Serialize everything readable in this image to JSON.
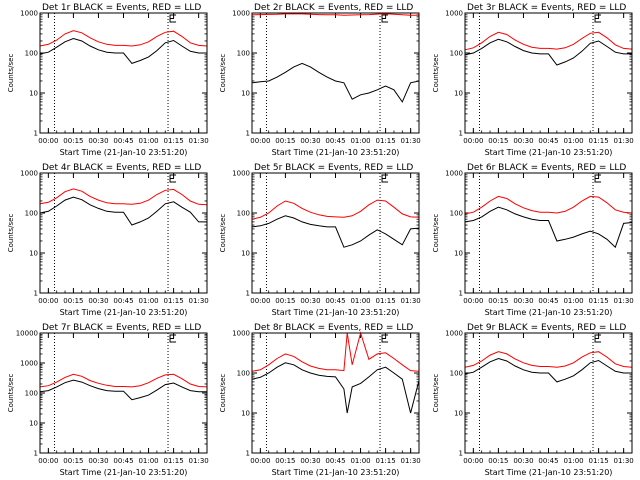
{
  "chart_data": {
    "type": "line",
    "x_ticks": [
      "00:00",
      "00:15",
      "00:30",
      "00:45",
      "01:00",
      "01:15",
      "01:30"
    ],
    "xlabel": "Start Time (21-Jan-10 23:51:20)",
    "ylabel": "Counts/sec",
    "yscale": "log",
    "dotted_lines_minutes": [
      8.67,
      76.67
    ],
    "panels": [
      {
        "title": "Det 1r BLACK = Events, RED = LLD",
        "ylim": [
          1,
          1000
        ],
        "yticks": [
          "1",
          "10",
          "100",
          "1000"
        ],
        "x_minutes": [
          0,
          5,
          10,
          15,
          20,
          25,
          30,
          35,
          40,
          45,
          50,
          55,
          60,
          65,
          70,
          75,
          80,
          85,
          90,
          95,
          100
        ],
        "series": [
          {
            "name": "Events",
            "color": "#000000",
            "values": [
              95,
              105,
              140,
              190,
              230,
              200,
              150,
              120,
              105,
              100,
              100,
              55,
              65,
              80,
              115,
              180,
              205,
              150,
              110,
              100,
              100
            ]
          },
          {
            "name": "LLD",
            "color": "#ff0000",
            "values": [
              150,
              165,
              210,
              300,
              360,
              320,
              240,
              190,
              165,
              155,
              155,
              150,
              160,
              190,
              260,
              330,
              350,
              260,
              180,
              155,
              150
            ]
          }
        ]
      },
      {
        "title": "Det 2r BLACK = Events, RED = LLD",
        "ylim": [
          1,
          1000
        ],
        "yticks": [
          "1",
          "10",
          "100",
          "1000"
        ],
        "x_minutes": [
          0,
          5,
          10,
          15,
          20,
          25,
          30,
          35,
          40,
          45,
          50,
          55,
          60,
          65,
          70,
          75,
          80,
          85,
          90,
          95,
          100
        ],
        "series": [
          {
            "name": "Events",
            "color": "#000000",
            "values": [
              18,
              19,
              20,
              25,
              33,
              45,
              55,
              45,
              33,
              25,
              20,
              18,
              7,
              9,
              10,
              12,
              15,
              12,
              6,
              18,
              20
            ]
          },
          {
            "name": "LLD",
            "color": "#ff0000",
            "values": [
              900,
              910,
              920,
              930,
              950,
              960,
              950,
              930,
              910,
              900,
              900,
              880,
              890,
              900,
              910,
              940,
              960,
              930,
              900,
              880,
              880
            ]
          }
        ]
      },
      {
        "title": "Det 3r BLACK = Events, RED = LLD",
        "ylim": [
          1,
          1000
        ],
        "yticks": [
          "1",
          "10",
          "100",
          "1000"
        ],
        "x_minutes": [
          0,
          5,
          10,
          15,
          20,
          25,
          30,
          35,
          40,
          45,
          50,
          55,
          60,
          65,
          70,
          75,
          80,
          85,
          90,
          95,
          100
        ],
        "series": [
          {
            "name": "Events",
            "color": "#000000",
            "values": [
              90,
              100,
              130,
              180,
              220,
              190,
              145,
              115,
              100,
              95,
              95,
              50,
              60,
              75,
              110,
              175,
              200,
              145,
              105,
              95,
              95
            ]
          },
          {
            "name": "LLD",
            "color": "#ff0000",
            "values": [
              120,
              135,
              180,
              260,
              330,
              290,
              210,
              165,
              140,
              130,
              130,
              125,
              135,
              165,
              230,
              310,
              330,
              240,
              160,
              130,
              125
            ]
          }
        ]
      },
      {
        "title": "Det 4r BLACK = Events, RED = LLD",
        "ylim": [
          1,
          1000
        ],
        "yticks": [
          "1",
          "10",
          "100",
          "1000"
        ],
        "x_minutes": [
          0,
          5,
          10,
          15,
          20,
          25,
          30,
          35,
          40,
          45,
          50,
          55,
          60,
          65,
          70,
          75,
          80,
          85,
          90,
          95,
          100
        ],
        "series": [
          {
            "name": "Events",
            "color": "#000000",
            "values": [
              100,
              110,
              150,
              210,
              250,
              215,
              160,
              130,
              110,
              105,
              105,
              50,
              60,
              75,
              110,
              170,
              190,
              140,
              105,
              60,
              60
            ]
          },
          {
            "name": "LLD",
            "color": "#ff0000",
            "values": [
              170,
              185,
              240,
              340,
              400,
              350,
              260,
              210,
              180,
              170,
              170,
              165,
              175,
              210,
              290,
              370,
              390,
              290,
              200,
              165,
              160
            ]
          }
        ]
      },
      {
        "title": "Det 5r BLACK = Events, RED = LLD",
        "ylim": [
          1,
          1000
        ],
        "yticks": [
          "1",
          "10",
          "100",
          "1000"
        ],
        "x_minutes": [
          0,
          5,
          10,
          15,
          20,
          25,
          30,
          35,
          40,
          45,
          50,
          55,
          60,
          65,
          70,
          75,
          80,
          85,
          90,
          95,
          100
        ],
        "series": [
          {
            "name": "Events",
            "color": "#000000",
            "values": [
              45,
              48,
              55,
              70,
              85,
              75,
              60,
              52,
              48,
              45,
              45,
              14,
              16,
              20,
              28,
              38,
              30,
              22,
              16,
              40,
              42
            ]
          },
          {
            "name": "LLD",
            "color": "#ff0000",
            "values": [
              70,
              78,
              100,
              150,
              200,
              175,
              130,
              105,
              90,
              82,
              80,
              78,
              85,
              110,
              160,
              210,
              200,
              140,
              95,
              80,
              78
            ]
          }
        ]
      },
      {
        "title": "Det 6r BLACK = Events, RED = LLD",
        "ylim": [
          1,
          1000
        ],
        "yticks": [
          "1",
          "10",
          "100",
          "1000"
        ],
        "x_minutes": [
          0,
          5,
          10,
          15,
          20,
          25,
          30,
          35,
          40,
          45,
          50,
          55,
          60,
          65,
          70,
          75,
          80,
          85,
          90,
          95,
          100
        ],
        "series": [
          {
            "name": "Events",
            "color": "#000000",
            "values": [
              60,
              65,
              80,
              110,
              140,
              120,
              95,
              80,
              70,
              65,
              65,
              20,
              22,
              25,
              30,
              35,
              30,
              22,
              14,
              55,
              58
            ]
          },
          {
            "name": "LLD",
            "color": "#ff0000",
            "values": [
              95,
              105,
              140,
              200,
              260,
              230,
              170,
              135,
              115,
              105,
              105,
              100,
              110,
              140,
              200,
              260,
              250,
              180,
              120,
              105,
              100
            ]
          }
        ]
      },
      {
        "title": "Det 7r BLACK = Events, RED = LLD",
        "ylim": [
          1,
          10000
        ],
        "yticks": [
          "1",
          "10",
          "100",
          "1000",
          "10000"
        ],
        "x_minutes": [
          0,
          5,
          10,
          15,
          20,
          25,
          30,
          35,
          40,
          45,
          50,
          55,
          60,
          65,
          70,
          75,
          80,
          85,
          90,
          95,
          100
        ],
        "series": [
          {
            "name": "Events",
            "color": "#000000",
            "values": [
              110,
              120,
              160,
              220,
              270,
              230,
              175,
              140,
              120,
              115,
              115,
              60,
              70,
              85,
              125,
              190,
              215,
              160,
              120,
              110,
              110
            ]
          },
          {
            "name": "LLD",
            "color": "#ff0000",
            "values": [
              160,
              175,
              230,
              330,
              420,
              360,
              260,
              210,
              180,
              165,
              165,
              160,
              175,
              220,
              310,
              400,
              420,
              300,
              200,
              165,
              160
            ]
          }
        ]
      },
      {
        "title": "Det 8r BLACK = Events, RED = LLD",
        "ylim": [
          1,
          1000
        ],
        "yticks": [
          "1",
          "10",
          "100",
          "1000"
        ],
        "x_minutes": [
          0,
          5,
          10,
          15,
          20,
          25,
          30,
          35,
          40,
          45,
          50,
          55,
          57,
          60,
          65,
          70,
          75,
          80,
          85,
          90,
          95,
          100
        ],
        "series": [
          {
            "name": "Events",
            "color": "#000000",
            "values": [
              70,
              78,
              100,
              140,
              180,
              160,
              120,
              100,
              88,
              82,
              80,
              40,
              10,
              45,
              55,
              80,
              120,
              140,
              100,
              70,
              10,
              65
            ]
          },
          {
            "name": "LLD",
            "color": "#ff0000",
            "values": [
              110,
              120,
              160,
              230,
              300,
              260,
              190,
              150,
              130,
              120,
              120,
              115,
              1000,
              160,
              1000,
              220,
              300,
              320,
              230,
              160,
              115,
              110
            ]
          }
        ]
      },
      {
        "title": "Det 9r BLACK = Events, RED = LLD",
        "ylim": [
          1,
          1000
        ],
        "yticks": [
          "1",
          "10",
          "100",
          "1000"
        ],
        "x_minutes": [
          0,
          5,
          10,
          15,
          20,
          25,
          30,
          35,
          40,
          45,
          50,
          55,
          60,
          65,
          70,
          75,
          80,
          85,
          90,
          95,
          100
        ],
        "series": [
          {
            "name": "Events",
            "color": "#000000",
            "values": [
              95,
              105,
              140,
              190,
              230,
              200,
              150,
              120,
              105,
              100,
              100,
              60,
              70,
              85,
              120,
              180,
              205,
              150,
              110,
              100,
              100
            ]
          },
          {
            "name": "LLD",
            "color": "#ff0000",
            "values": [
              140,
              155,
              200,
              280,
              340,
              300,
              225,
              180,
              155,
              145,
              145,
              140,
              150,
              180,
              250,
              320,
              340,
              250,
              170,
              145,
              140
            ]
          }
        ]
      }
    ]
  }
}
